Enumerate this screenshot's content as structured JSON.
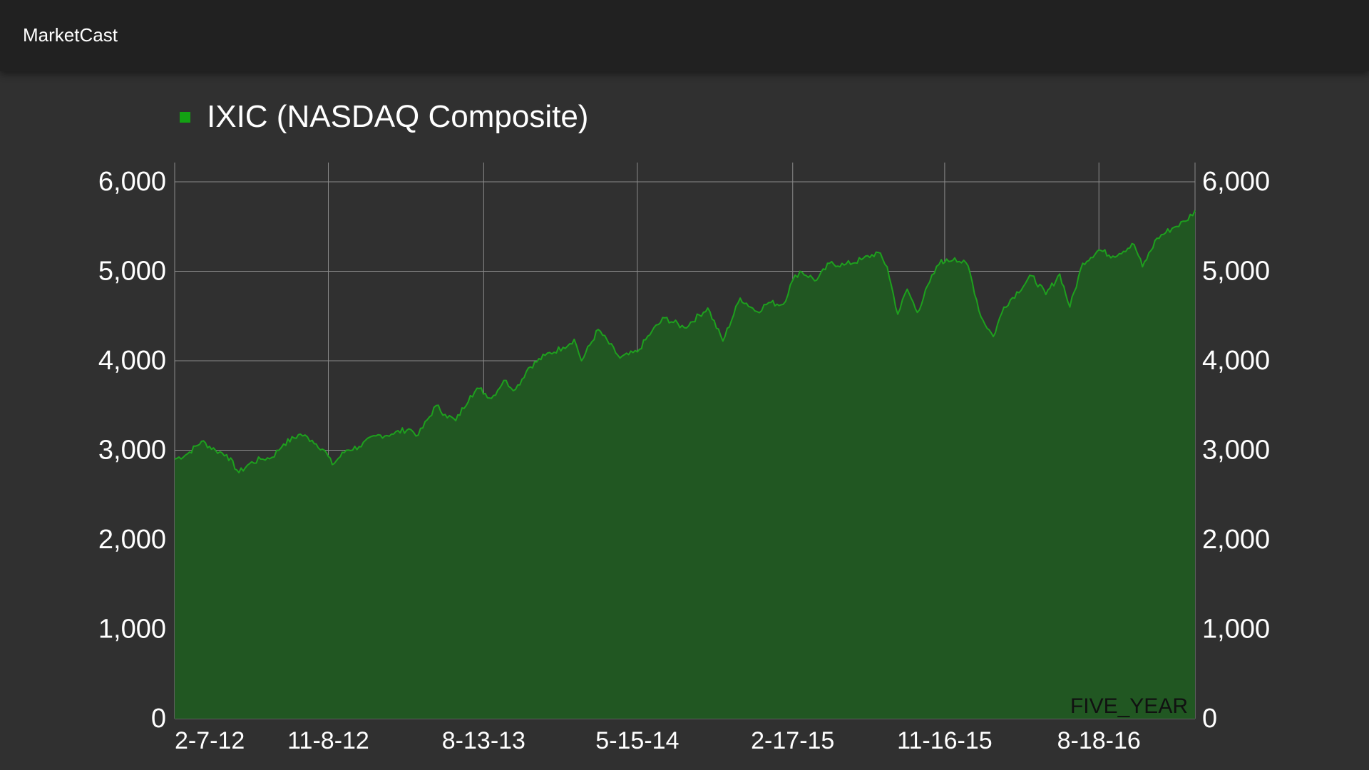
{
  "app": {
    "title": "MarketCast"
  },
  "colors": {
    "app_bar": "#212121",
    "background": "#303030",
    "series_line": "#1ea01e",
    "series_fill": "#215722",
    "legend_swatch": "#13a113",
    "grid": "#8a8a8a",
    "range_label": "#111111"
  },
  "chart_data": {
    "type": "area",
    "title": "",
    "xlabel": "",
    "ylabel": "",
    "legend": [
      "IXIC (NASDAQ Composite)"
    ],
    "legend_position": "top-left",
    "range_label": "FIVE_YEAR",
    "grid": true,
    "y_axes": [
      "left",
      "right"
    ],
    "ylim": [
      0,
      6000
    ],
    "xlim": [
      "2012-02-07",
      "2017-02-06"
    ],
    "y_ticks": [
      0,
      1000,
      2000,
      3000,
      4000,
      5000,
      6000
    ],
    "y_tick_labels": [
      "0",
      "1,000",
      "2,000",
      "3,000",
      "4,000",
      "5,000",
      "6,000"
    ],
    "x_ticks": [
      "2012-02-07",
      "2012-11-08",
      "2013-08-13",
      "2014-05-15",
      "2015-02-17",
      "2015-11-16",
      "2016-08-18"
    ],
    "x_tick_labels": [
      "2-7-12",
      "11-8-12",
      "8-13-13",
      "5-15-14",
      "2-17-15",
      "11-16-15",
      "8-18-16"
    ],
    "series": [
      {
        "name": "IXIC (NASDAQ Composite)",
        "points": [
          [
            "2012-02-07",
            2900
          ],
          [
            "2012-03-01",
            2960
          ],
          [
            "2012-03-26",
            3100
          ],
          [
            "2012-04-20",
            3000
          ],
          [
            "2012-05-10",
            2950
          ],
          [
            "2012-06-01",
            2750
          ],
          [
            "2012-06-20",
            2850
          ],
          [
            "2012-07-10",
            2900
          ],
          [
            "2012-07-30",
            2920
          ],
          [
            "2012-08-20",
            3070
          ],
          [
            "2012-09-19",
            3180
          ],
          [
            "2012-10-10",
            3110
          ],
          [
            "2012-11-01",
            3000
          ],
          [
            "2012-11-15",
            2840
          ],
          [
            "2012-12-10",
            3000
          ],
          [
            "2013-01-02",
            3040
          ],
          [
            "2013-02-01",
            3160
          ],
          [
            "2013-03-01",
            3180
          ],
          [
            "2013-04-01",
            3240
          ],
          [
            "2013-04-18",
            3170
          ],
          [
            "2013-05-20",
            3500
          ],
          [
            "2013-06-05",
            3400
          ],
          [
            "2013-06-24",
            3330
          ],
          [
            "2013-07-20",
            3610
          ],
          [
            "2013-08-05",
            3690
          ],
          [
            "2013-08-27",
            3580
          ],
          [
            "2013-09-18",
            3780
          ],
          [
            "2013-10-09",
            3680
          ],
          [
            "2013-11-01",
            3920
          ],
          [
            "2013-12-01",
            4060
          ],
          [
            "2014-01-02",
            4150
          ],
          [
            "2014-01-22",
            4240
          ],
          [
            "2014-02-04",
            4000
          ],
          [
            "2014-03-06",
            4350
          ],
          [
            "2014-04-14",
            4030
          ],
          [
            "2014-05-15",
            4100
          ],
          [
            "2014-06-10",
            4330
          ],
          [
            "2014-07-03",
            4480
          ],
          [
            "2014-08-07",
            4370
          ],
          [
            "2014-09-18",
            4590
          ],
          [
            "2014-10-15",
            4220
          ],
          [
            "2014-11-15",
            4700
          ],
          [
            "2014-12-15",
            4550
          ],
          [
            "2015-01-05",
            4650
          ],
          [
            "2015-01-31",
            4630
          ],
          [
            "2015-02-17",
            4900
          ],
          [
            "2015-03-02",
            5000
          ],
          [
            "2015-04-01",
            4900
          ],
          [
            "2015-04-24",
            5090
          ],
          [
            "2015-05-20",
            5070
          ],
          [
            "2015-06-20",
            5130
          ],
          [
            "2015-07-20",
            5210
          ],
          [
            "2015-08-05",
            5050
          ],
          [
            "2015-08-24",
            4520
          ],
          [
            "2015-09-10",
            4800
          ],
          [
            "2015-09-28",
            4540
          ],
          [
            "2015-10-20",
            4880
          ],
          [
            "2015-11-10",
            5130
          ],
          [
            "2015-11-16",
            5100
          ],
          [
            "2015-12-04",
            5150
          ],
          [
            "2015-12-28",
            5060
          ],
          [
            "2016-01-20",
            4490
          ],
          [
            "2016-02-11",
            4270
          ],
          [
            "2016-03-01",
            4600
          ],
          [
            "2016-04-20",
            4950
          ],
          [
            "2016-05-15",
            4740
          ],
          [
            "2016-06-09",
            4970
          ],
          [
            "2016-06-27",
            4600
          ],
          [
            "2016-07-20",
            5090
          ],
          [
            "2016-08-18",
            5240
          ],
          [
            "2016-09-12",
            5170
          ],
          [
            "2016-10-20",
            5300
          ],
          [
            "2016-11-04",
            5050
          ],
          [
            "2016-11-30",
            5370
          ],
          [
            "2016-12-27",
            5480
          ],
          [
            "2017-01-20",
            5560
          ],
          [
            "2017-02-06",
            5680
          ]
        ]
      }
    ]
  }
}
